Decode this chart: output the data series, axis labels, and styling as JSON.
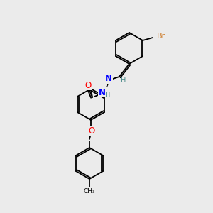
{
  "background_color": "#ebebeb",
  "bond_color": "#000000",
  "atom_colors": {
    "O": "#ff0000",
    "N": "#0000ff",
    "Br": "#cc7722",
    "H": "#4a8a8a",
    "C": "#000000"
  },
  "font_size": 7.5,
  "lw": 1.3
}
